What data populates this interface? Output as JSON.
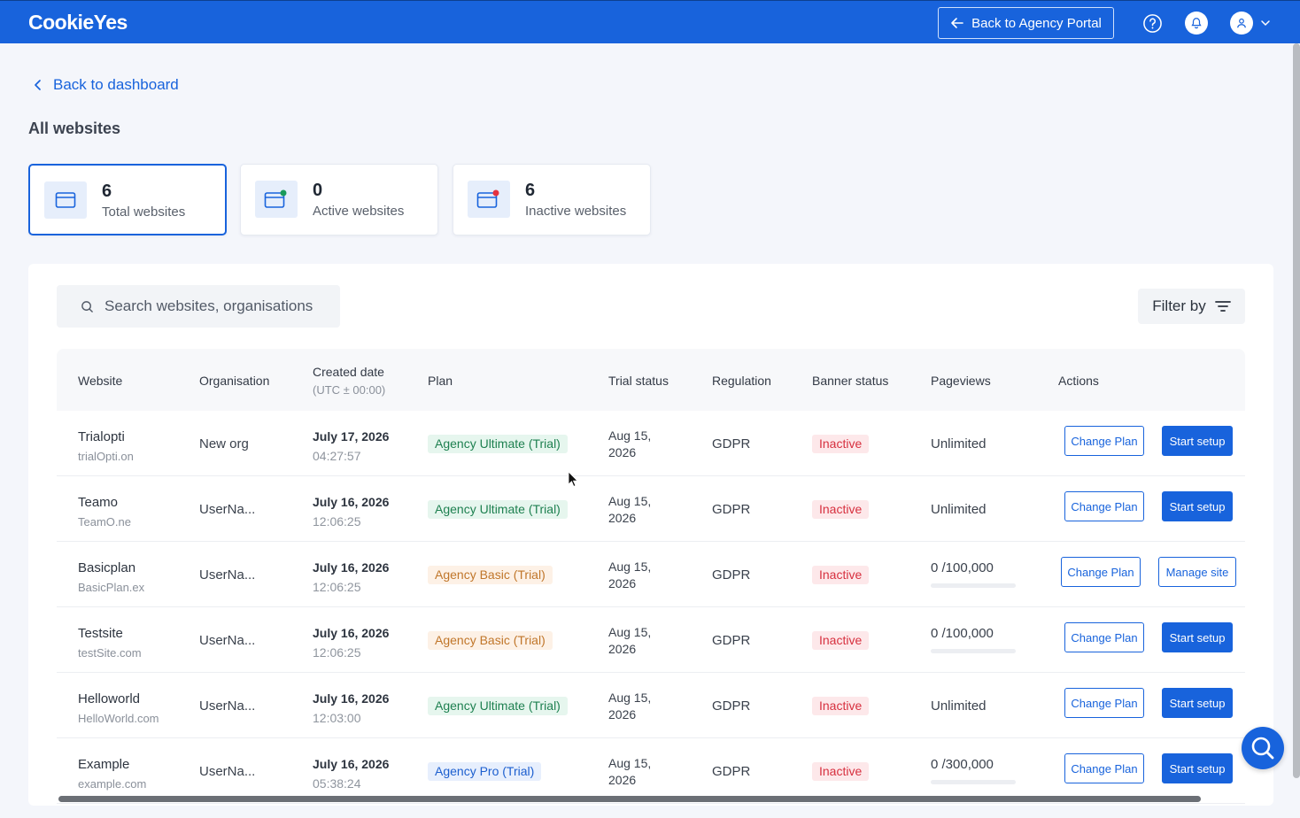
{
  "colors": {
    "brand": "#1863dc",
    "active": "#1a9a5b",
    "inactive": "#e53240"
  },
  "header": {
    "logo": "CookieYes",
    "agency_button": "Back to Agency Portal",
    "icons": [
      "help-icon",
      "bell-icon",
      "user-icon",
      "chevron-down-icon"
    ]
  },
  "nav": {
    "back_label": "Back to dashboard"
  },
  "page": {
    "title": "All websites"
  },
  "stats": [
    {
      "count": "6",
      "label": "Total websites",
      "icon": "window-icon"
    },
    {
      "count": "0",
      "label": "Active websites",
      "icon": "window-active-icon"
    },
    {
      "count": "6",
      "label": "Inactive websites",
      "icon": "window-inactive-icon"
    }
  ],
  "search": {
    "placeholder": "Search websites, organisations"
  },
  "filter": {
    "label": "Filter by"
  },
  "table": {
    "columns": {
      "website": "Website",
      "organisation": "Organisation",
      "created": "Created date",
      "created_sub": "(UTC ± 00:00)",
      "plan": "Plan",
      "trial": "Trial status",
      "regulation": "Regulation",
      "banner": "Banner status",
      "pageviews": "Pageviews",
      "actions": "Actions"
    },
    "rows": [
      {
        "name": "Trialopti",
        "domain": "trialOpti.on",
        "org": "New org",
        "date": "July 17, 2026",
        "time": "04:27:57",
        "plan": "Agency Ultimate (Trial)",
        "plan_type": "ultimate",
        "trial_1": "Aug 15,",
        "trial_2": "2026",
        "regulation": "GDPR",
        "banner": "Inactive",
        "pageviews": "Unlimited",
        "pv_bar": false,
        "pv_fraction": 0,
        "action1": "Change Plan",
        "action2": "Start setup",
        "action2_style": "solid"
      },
      {
        "name": "Teamo",
        "domain": "TeamO.ne",
        "org": "UserNa...",
        "date": "July 16, 2026",
        "time": "12:06:25",
        "plan": "Agency Ultimate (Trial)",
        "plan_type": "ultimate",
        "trial_1": "Aug 15,",
        "trial_2": "2026",
        "regulation": "GDPR",
        "banner": "Inactive",
        "pageviews": "Unlimited",
        "pv_bar": false,
        "pv_fraction": 0,
        "action1": "Change Plan",
        "action2": "Start setup",
        "action2_style": "solid"
      },
      {
        "name": "Basicplan",
        "domain": "BasicPlan.ex",
        "org": "UserNa...",
        "date": "July 16, 2026",
        "time": "12:06:25",
        "plan": "Agency Basic (Trial)",
        "plan_type": "basic",
        "trial_1": "Aug 15,",
        "trial_2": "2026",
        "regulation": "GDPR",
        "banner": "Inactive",
        "pageviews": "0 /100,000",
        "pv_bar": true,
        "pv_fraction": 0,
        "action1": "Change Plan",
        "action2": "Manage site",
        "action2_style": "outline"
      },
      {
        "name": "Testsite",
        "domain": "testSite.com",
        "org": "UserNa...",
        "date": "July 16, 2026",
        "time": "12:06:25",
        "plan": "Agency Basic (Trial)",
        "plan_type": "basic",
        "trial_1": "Aug 15,",
        "trial_2": "2026",
        "regulation": "GDPR",
        "banner": "Inactive",
        "pageviews": "0 /100,000",
        "pv_bar": true,
        "pv_fraction": 0,
        "action1": "Change Plan",
        "action2": "Start setup",
        "action2_style": "solid"
      },
      {
        "name": "Helloworld",
        "domain": "HelloWorld.com",
        "org": "UserNa...",
        "date": "July 16, 2026",
        "time": "12:03:00",
        "plan": "Agency Ultimate (Trial)",
        "plan_type": "ultimate",
        "trial_1": "Aug 15,",
        "trial_2": "2026",
        "regulation": "GDPR",
        "banner": "Inactive",
        "pageviews": "Unlimited",
        "pv_bar": false,
        "pv_fraction": 0,
        "action1": "Change Plan",
        "action2": "Start setup",
        "action2_style": "solid"
      },
      {
        "name": "Example",
        "domain": "example.com",
        "org": "UserNa...",
        "date": "July 16, 2026",
        "time": "05:38:24",
        "plan": "Agency Pro (Trial)",
        "plan_type": "pro",
        "trial_1": "Aug 15,",
        "trial_2": "2026",
        "regulation": "GDPR",
        "banner": "Inactive",
        "pageviews": "0 /300,000",
        "pv_bar": true,
        "pv_fraction": 0,
        "action1": "Change Plan",
        "action2": "Start setup",
        "action2_style": "solid"
      }
    ]
  }
}
